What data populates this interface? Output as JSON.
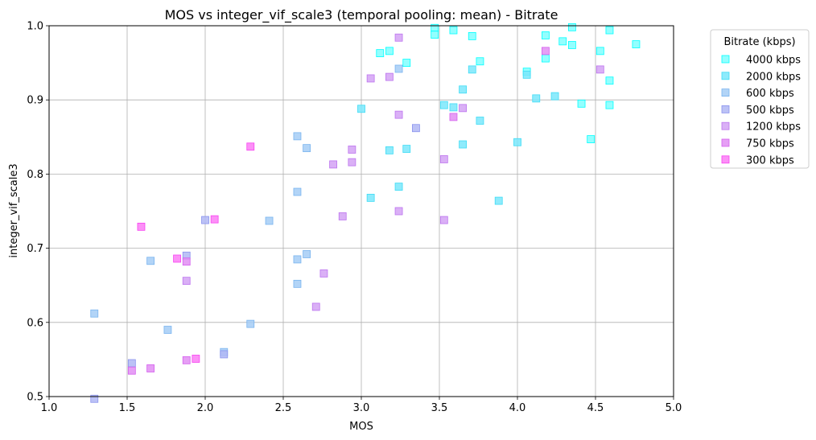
{
  "chart_data": {
    "type": "scatter",
    "title": "MOS vs integer_vif_scale3 (temporal pooling: mean) - Bitrate",
    "xlabel": "MOS",
    "ylabel": "integer_vif_scale3",
    "xlim": [
      1.0,
      5.0
    ],
    "ylim": [
      0.5,
      1.0
    ],
    "xticks": [
      "1.0",
      "1.5",
      "2.0",
      "2.5",
      "3.0",
      "3.5",
      "4.0",
      "4.5",
      "5.0"
    ],
    "yticks": [
      "0.5",
      "0.6",
      "0.7",
      "0.8",
      "0.9",
      "1.0"
    ],
    "grid": true,
    "legend": {
      "title": "Bitrate (kbps)",
      "placement": "upper right, outside plot"
    },
    "series": [
      {
        "name": "4000 kbps",
        "color": "#80ffff",
        "edge": "#00ffff",
        "points": [
          [
            3.12,
            0.963
          ],
          [
            3.18,
            0.966
          ],
          [
            3.29,
            0.95
          ],
          [
            3.47,
            0.997
          ],
          [
            3.47,
            0.988
          ],
          [
            3.59,
            0.994
          ],
          [
            3.71,
            0.986
          ],
          [
            3.76,
            0.952
          ],
          [
            4.06,
            0.938
          ],
          [
            4.18,
            0.956
          ],
          [
            4.18,
            0.987
          ],
          [
            4.29,
            0.979
          ],
          [
            4.35,
            0.998
          ],
          [
            4.35,
            0.974
          ],
          [
            4.53,
            0.966
          ],
          [
            4.59,
            0.994
          ],
          [
            4.59,
            0.926
          ],
          [
            4.76,
            0.975
          ],
          [
            4.41,
            0.895
          ],
          [
            4.59,
            0.893
          ],
          [
            4.47,
            0.847
          ]
        ]
      },
      {
        "name": "2000 kbps",
        "color": "#7ae8fb",
        "edge": "#3fdcf5",
        "points": [
          [
            3.0,
            0.888
          ],
          [
            3.18,
            0.832
          ],
          [
            3.29,
            0.834
          ],
          [
            3.06,
            0.768
          ],
          [
            3.24,
            0.783
          ],
          [
            3.53,
            0.893
          ],
          [
            3.59,
            0.89
          ],
          [
            3.65,
            0.914
          ],
          [
            3.71,
            0.941
          ],
          [
            3.76,
            0.872
          ],
          [
            3.65,
            0.84
          ],
          [
            3.88,
            0.764
          ],
          [
            4.0,
            0.843
          ],
          [
            4.06,
            0.934
          ],
          [
            4.12,
            0.902
          ],
          [
            4.24,
            0.905
          ]
        ]
      },
      {
        "name": "600 kbps",
        "color": "#a4cdf6",
        "edge": "#79b4ef",
        "points": [
          [
            1.29,
            0.612
          ],
          [
            1.65,
            0.683
          ],
          [
            1.76,
            0.59
          ],
          [
            2.29,
            0.598
          ],
          [
            2.41,
            0.737
          ],
          [
            2.59,
            0.851
          ],
          [
            2.59,
            0.776
          ],
          [
            2.59,
            0.685
          ],
          [
            2.59,
            0.652
          ],
          [
            2.65,
            0.835
          ],
          [
            2.65,
            0.692
          ],
          [
            2.12,
            0.56
          ],
          [
            3.24,
            0.942
          ]
        ]
      },
      {
        "name": "500 kbps",
        "color": "#b0b7f4",
        "edge": "#8a93ee",
        "points": [
          [
            1.29,
            0.497
          ],
          [
            1.53,
            0.545
          ],
          [
            1.88,
            0.69
          ],
          [
            2.0,
            0.738
          ],
          [
            2.12,
            0.557
          ],
          [
            3.35,
            0.862
          ]
        ]
      },
      {
        "name": "1200 kbps",
        "color": "#d3a2f4",
        "edge": "#bd74ef",
        "points": [
          [
            1.88,
            0.656
          ],
          [
            2.76,
            0.666
          ],
          [
            2.82,
            0.813
          ],
          [
            2.88,
            0.743
          ],
          [
            2.94,
            0.833
          ],
          [
            2.94,
            0.816
          ],
          [
            3.06,
            0.929
          ],
          [
            3.18,
            0.931
          ],
          [
            3.24,
            0.984
          ],
          [
            3.24,
            0.88
          ],
          [
            3.24,
            0.75
          ],
          [
            3.53,
            0.82
          ],
          [
            3.53,
            0.738
          ],
          [
            3.65,
            0.889
          ],
          [
            4.53,
            0.941
          ],
          [
            2.71,
            0.621
          ]
        ]
      },
      {
        "name": "750 kbps",
        "color": "#e28ef3",
        "edge": "#d45fee",
        "points": [
          [
            1.53,
            0.535
          ],
          [
            1.65,
            0.538
          ],
          [
            1.88,
            0.682
          ],
          [
            1.88,
            0.549
          ],
          [
            3.59,
            0.877
          ],
          [
            4.18,
            0.966
          ]
        ]
      },
      {
        "name": "300 kbps",
        "color": "#fb7cf6",
        "edge": "#f742f1",
        "points": [
          [
            1.59,
            0.729
          ],
          [
            1.82,
            0.686
          ],
          [
            1.94,
            0.551
          ],
          [
            2.06,
            0.739
          ],
          [
            2.29,
            0.837
          ]
        ]
      }
    ]
  }
}
